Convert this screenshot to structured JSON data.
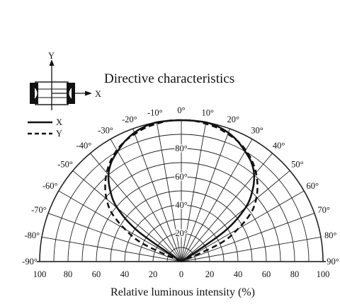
{
  "chart_data": {
    "type": "polar",
    "title": "Directive characteristics",
    "xlabel": "Relative luminous intensity  (%)",
    "angle_unit": "°",
    "angle_ticks": [
      -90,
      -80,
      -70,
      -60,
      -50,
      -40,
      -30,
      -20,
      -10,
      0,
      10,
      20,
      30,
      40,
      50,
      60,
      70,
      80,
      90
    ],
    "radial_ticks": [
      20,
      40,
      60,
      80
    ],
    "radial_tick_suffix": "°",
    "axis_ticks": [
      100,
      80,
      60,
      40,
      20,
      0,
      20,
      40,
      60,
      80,
      100
    ],
    "rlim": [
      0,
      100
    ],
    "grid": true,
    "legend": {
      "placement": "top-left",
      "axis_labels": {
        "x": "X",
        "y": "Y"
      }
    },
    "series": [
      {
        "name": "X",
        "style": "solid",
        "angles": [
          -60,
          -55,
          -50,
          -45,
          -40,
          -35,
          -30,
          -25,
          -20,
          -15,
          -10,
          -5,
          0,
          5,
          10,
          15,
          20,
          25,
          30,
          35,
          40,
          45,
          50,
          55,
          60
        ],
        "values": [
          0,
          37,
          59,
          71,
          80,
          86,
          90,
          94,
          97,
          99,
          100,
          100,
          100,
          100,
          100,
          99,
          97,
          94,
          90,
          86,
          80,
          71,
          59,
          37,
          0
        ]
      },
      {
        "name": "Y",
        "style": "dashed",
        "angles": [
          -70,
          -65,
          -60,
          -55,
          -50,
          -45,
          -40,
          -35,
          -30,
          -25,
          -20,
          -15,
          -10,
          -5,
          0,
          5,
          10,
          15,
          20,
          25,
          30,
          35,
          40,
          45,
          50,
          55,
          60,
          65,
          70
        ],
        "values": [
          0,
          30,
          46,
          60,
          69,
          76,
          82,
          87,
          91,
          94,
          96,
          98,
          99,
          100,
          100,
          100,
          99,
          98,
          96,
          94,
          91,
          87,
          82,
          76,
          69,
          60,
          46,
          30,
          0
        ]
      }
    ]
  }
}
